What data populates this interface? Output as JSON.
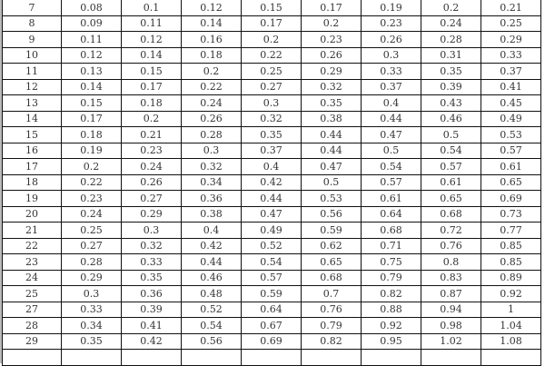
{
  "table": {
    "rows": [
      [
        "7",
        "0.08",
        "0.1",
        "0.12",
        "0.15",
        "0.17",
        "0.19",
        "0.2",
        "0.21"
      ],
      [
        "8",
        "0.09",
        "0.11",
        "0.14",
        "0.17",
        "0.2",
        "0.23",
        "0.24",
        "0.25"
      ],
      [
        "9",
        "0.11",
        "0.12",
        "0.16",
        "0.2",
        "0.23",
        "0.26",
        "0.28",
        "0.29"
      ],
      [
        "10",
        "0.12",
        "0.14",
        "0.18",
        "0.22",
        "0.26",
        "0.3",
        "0.31",
        "0.33"
      ],
      [
        "11",
        "0.13",
        "0.15",
        "0.2",
        "0.25",
        "0.29",
        "0.33",
        "0.35",
        "0.37"
      ],
      [
        "12",
        "0.14",
        "0.17",
        "0.22",
        "0.27",
        "0.32",
        "0.37",
        "0.39",
        "0.41"
      ],
      [
        "13",
        "0.15",
        "0.18",
        "0.24",
        "0.3",
        "0.35",
        "0.4",
        "0.43",
        "0.45"
      ],
      [
        "14",
        "0.17",
        "0.2",
        "0.26",
        "0.32",
        "0.38",
        "0.44",
        "0.46",
        "0.49"
      ],
      [
        "15",
        "0.18",
        "0.21",
        "0.28",
        "0.35",
        "0.44",
        "0.47",
        "0.5",
        "0.53"
      ],
      [
        "16",
        "0.19",
        "0.23",
        "0.3",
        "0.37",
        "0.44",
        "0.5",
        "0.54",
        "0.57"
      ],
      [
        "17",
        "0.2",
        "0.24",
        "0.32",
        "0.4",
        "0.47",
        "0.54",
        "0.57",
        "0.61"
      ],
      [
        "18",
        "0.22",
        "0.26",
        "0.34",
        "0.42",
        "0.5",
        "0.57",
        "0.61",
        "0.65"
      ],
      [
        "19",
        "0.23",
        "0.27",
        "0.36",
        "0.44",
        "0.53",
        "0.61",
        "0.65",
        "0.69"
      ],
      [
        "20",
        "0.24",
        "0.29",
        "0.38",
        "0.47",
        "0.56",
        "0.64",
        "0.68",
        "0.73"
      ],
      [
        "21",
        "0.25",
        "0.3",
        "0.4",
        "0.49",
        "0.59",
        "0.68",
        "0.72",
        "0.77"
      ],
      [
        "22",
        "0.27",
        "0.32",
        "0.42",
        "0.52",
        "0.62",
        "0.71",
        "0.76",
        "0.85"
      ],
      [
        "23",
        "0.28",
        "0.33",
        "0.44",
        "0.54",
        "0.65",
        "0.75",
        "0.8",
        "0.85"
      ],
      [
        "24",
        "0.29",
        "0.35",
        "0.46",
        "0.57",
        "0.68",
        "0.79",
        "0.83",
        "0.89"
      ],
      [
        "25",
        "0.3",
        "0.36",
        "0.48",
        "0.59",
        "0.7",
        "0.82",
        "0.87",
        "0.92"
      ],
      [
        "27",
        "0.33",
        "0.39",
        "0.52",
        "0.64",
        "0.76",
        "0.88",
        "0.94",
        "1"
      ],
      [
        "28",
        "0.34",
        "0.41",
        "0.54",
        "0.67",
        "0.79",
        "0.92",
        "0.98",
        "1.04"
      ],
      [
        "29",
        "0.35",
        "0.42",
        "0.56",
        "0.69",
        "0.82",
        "0.95",
        "1.02",
        "1.08"
      ]
    ]
  }
}
